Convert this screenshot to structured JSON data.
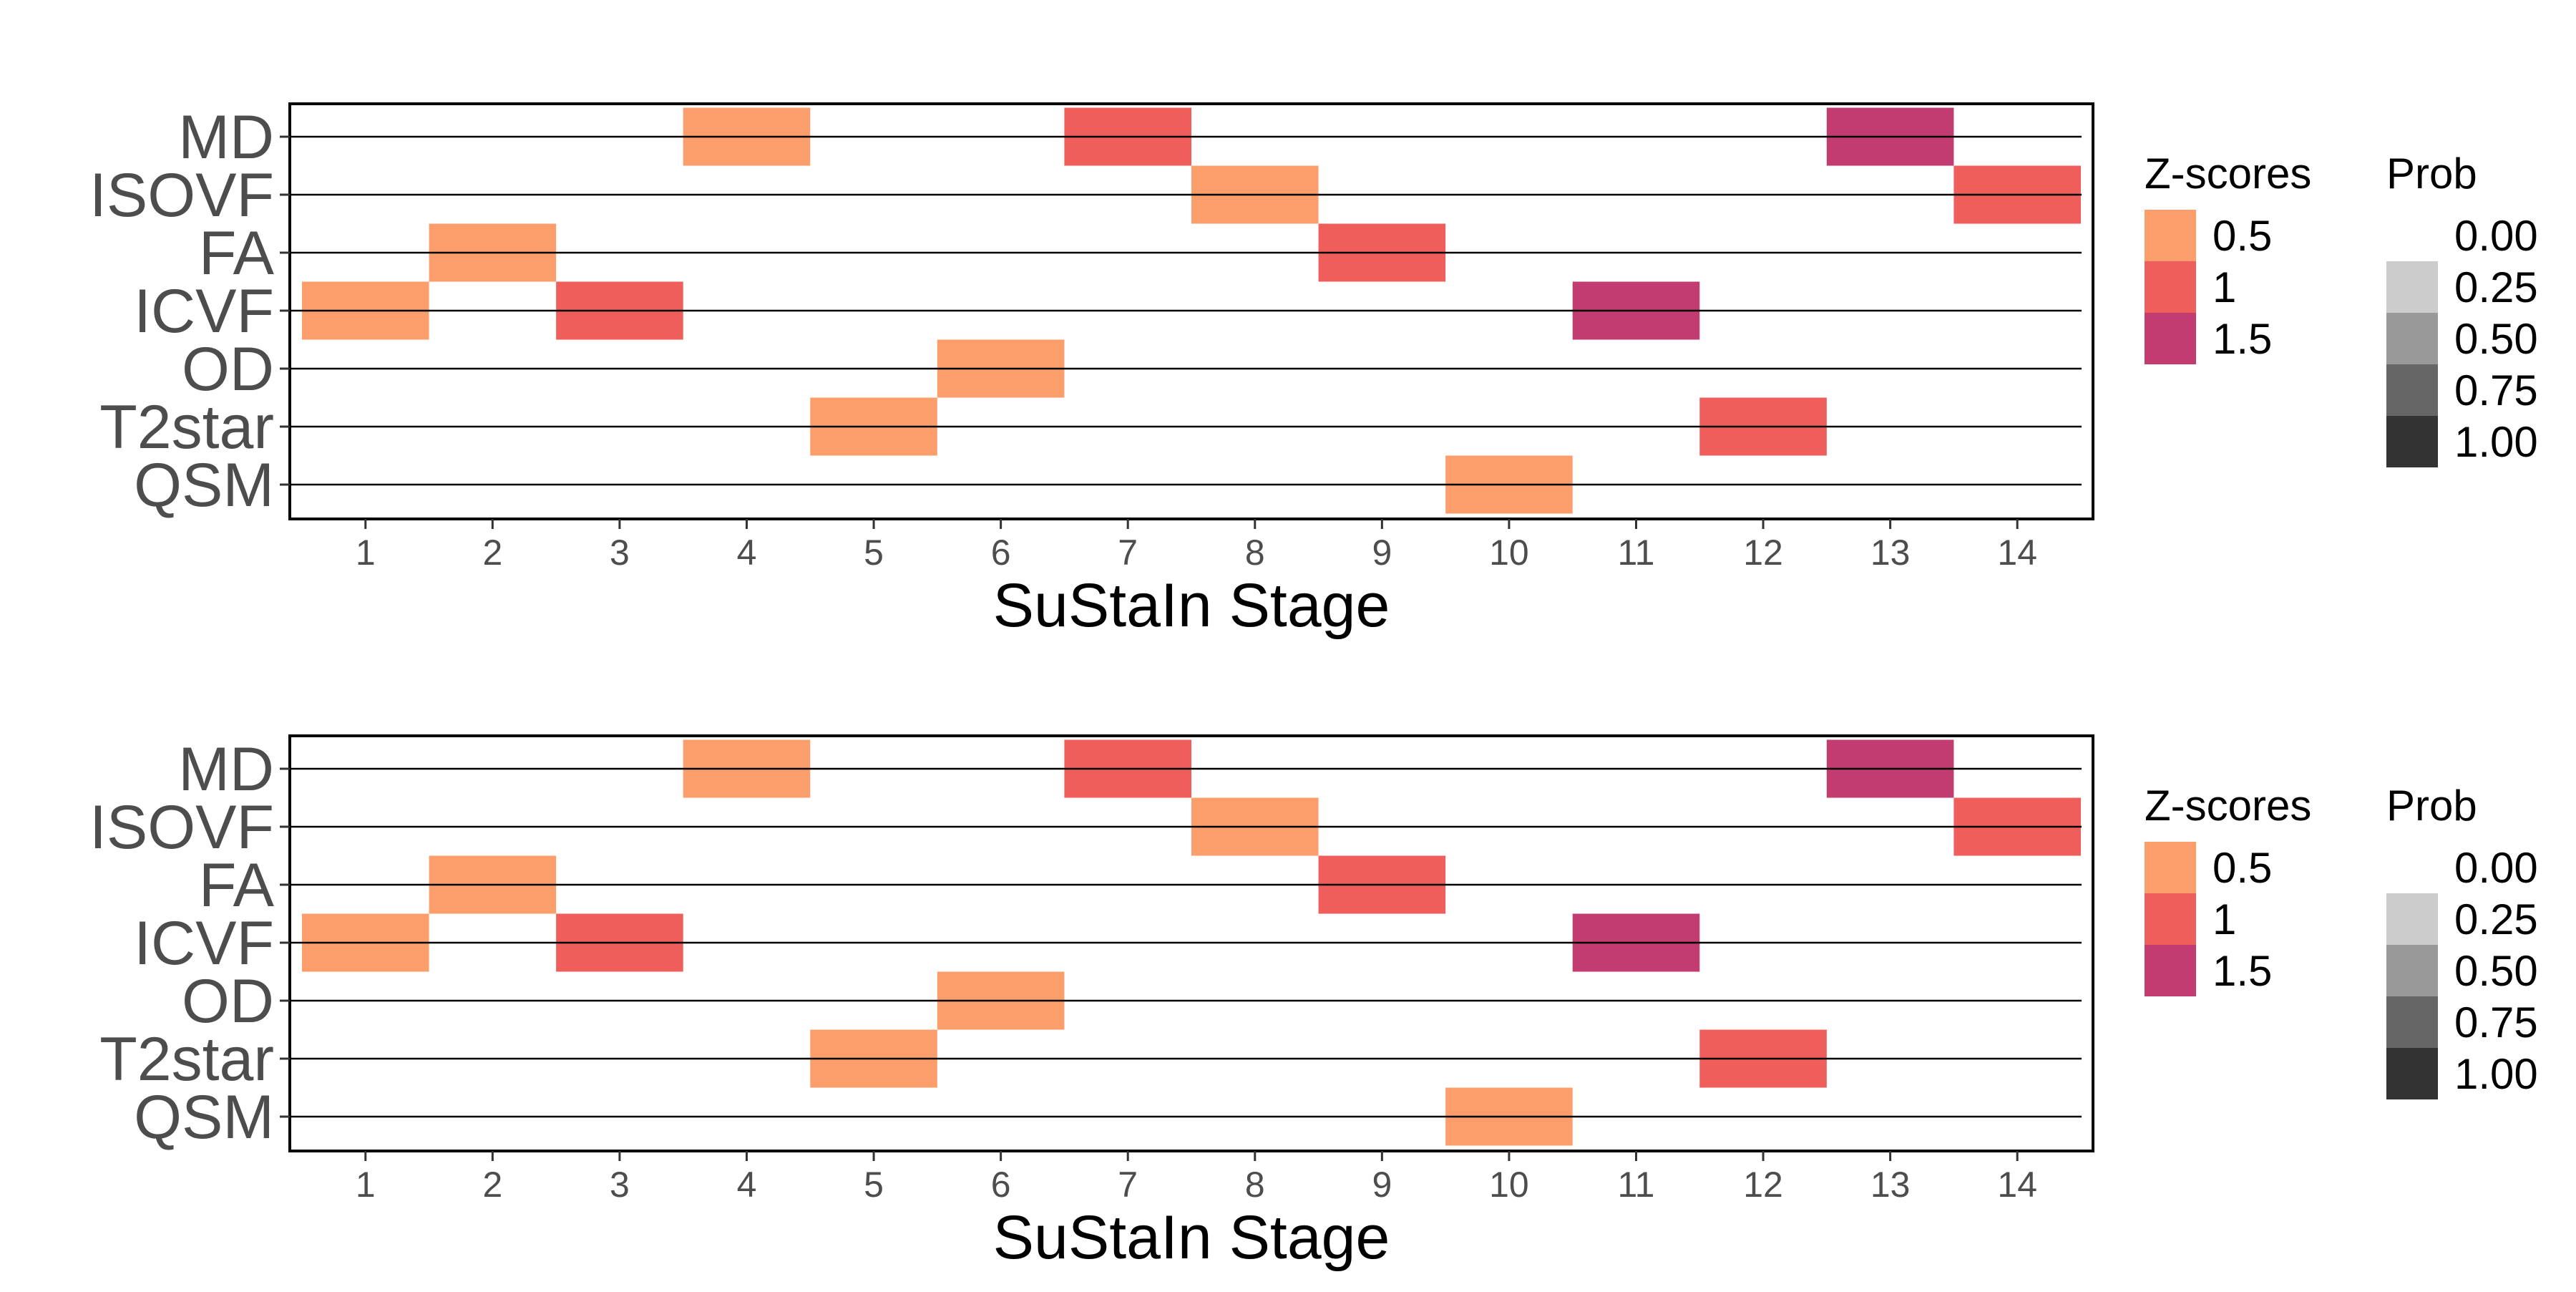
{
  "chart_data": [
    {
      "type": "heatmap",
      "xlabel": "SuStaIn Stage",
      "ylabel": "",
      "x_ticks": [
        "1",
        "2",
        "3",
        "4",
        "5",
        "6",
        "7",
        "8",
        "9",
        "10",
        "11",
        "12",
        "13",
        "14"
      ],
      "xlim": [
        0.5,
        14.5
      ],
      "biomarkers": [
        "MD",
        "ISOVF",
        "FA",
        "ICVF",
        "OD",
        "T2star",
        "QSM"
      ],
      "cells": [
        {
          "biomarker": "MD",
          "stage": 4,
          "z": 0.5
        },
        {
          "biomarker": "MD",
          "stage": 7,
          "z": 1
        },
        {
          "biomarker": "MD",
          "stage": 13,
          "z": 1.5
        },
        {
          "biomarker": "ISOVF",
          "stage": 8,
          "z": 0.5
        },
        {
          "biomarker": "ISOVF",
          "stage": 14,
          "z": 1
        },
        {
          "biomarker": "FA",
          "stage": 2,
          "z": 0.5
        },
        {
          "biomarker": "FA",
          "stage": 9,
          "z": 1
        },
        {
          "biomarker": "ICVF",
          "stage": 1,
          "z": 0.5
        },
        {
          "biomarker": "ICVF",
          "stage": 3,
          "z": 1
        },
        {
          "biomarker": "ICVF",
          "stage": 11,
          "z": 1.5
        },
        {
          "biomarker": "OD",
          "stage": 6,
          "z": 0.5
        },
        {
          "biomarker": "T2star",
          "stage": 5,
          "z": 0.5
        },
        {
          "biomarker": "T2star",
          "stage": 12,
          "z": 1
        },
        {
          "biomarker": "QSM",
          "stage": 10,
          "z": 0.5
        }
      ],
      "legend_z": {
        "title": "Z-scores",
        "labels": [
          "0.5",
          "1",
          "1.5"
        ],
        "values": [
          0.5,
          1,
          1.5
        ],
        "colors": [
          "#fc9e6b",
          "#f05e5b",
          "#c23b71"
        ]
      },
      "legend_prob": {
        "title": "Prob",
        "labels": [
          "0.00",
          "0.25",
          "0.50",
          "0.75",
          "1.00"
        ],
        "values": [
          0,
          0.25,
          0.5,
          0.75,
          1
        ],
        "colors": [
          "#ffffff",
          "#cccccc",
          "#999999",
          "#666666",
          "#333333"
        ]
      },
      "grid": false,
      "legend_position": "right"
    },
    {
      "type": "heatmap",
      "xlabel": "SuStaIn Stage",
      "ylabel": "",
      "x_ticks": [
        "1",
        "2",
        "3",
        "4",
        "5",
        "6",
        "7",
        "8",
        "9",
        "10",
        "11",
        "12",
        "13",
        "14"
      ],
      "xlim": [
        0.5,
        14.5
      ],
      "biomarkers": [
        "MD",
        "ISOVF",
        "FA",
        "ICVF",
        "OD",
        "T2star",
        "QSM"
      ],
      "cells": [
        {
          "biomarker": "MD",
          "stage": 4,
          "z": 0.5
        },
        {
          "biomarker": "MD",
          "stage": 7,
          "z": 1
        },
        {
          "biomarker": "MD",
          "stage": 13,
          "z": 1.5
        },
        {
          "biomarker": "ISOVF",
          "stage": 8,
          "z": 0.5
        },
        {
          "biomarker": "ISOVF",
          "stage": 14,
          "z": 1
        },
        {
          "biomarker": "FA",
          "stage": 2,
          "z": 0.5
        },
        {
          "biomarker": "FA",
          "stage": 9,
          "z": 1
        },
        {
          "biomarker": "ICVF",
          "stage": 1,
          "z": 0.5
        },
        {
          "biomarker": "ICVF",
          "stage": 3,
          "z": 1
        },
        {
          "biomarker": "ICVF",
          "stage": 11,
          "z": 1.5
        },
        {
          "biomarker": "OD",
          "stage": 6,
          "z": 0.5
        },
        {
          "biomarker": "T2star",
          "stage": 5,
          "z": 0.5
        },
        {
          "biomarker": "T2star",
          "stage": 12,
          "z": 1
        },
        {
          "biomarker": "QSM",
          "stage": 10,
          "z": 0.5
        }
      ],
      "legend_z": {
        "title": "Z-scores",
        "labels": [
          "0.5",
          "1",
          "1.5"
        ],
        "values": [
          0.5,
          1,
          1.5
        ],
        "colors": [
          "#fc9e6b",
          "#f05e5b",
          "#c23b71"
        ]
      },
      "legend_prob": {
        "title": "Prob",
        "labels": [
          "0.00",
          "0.25",
          "0.50",
          "0.75",
          "1.00"
        ],
        "values": [
          0,
          0.25,
          0.5,
          0.75,
          1
        ],
        "colors": [
          "#ffffff",
          "#cccccc",
          "#999999",
          "#666666",
          "#333333"
        ]
      },
      "grid": false,
      "legend_position": "right"
    }
  ]
}
